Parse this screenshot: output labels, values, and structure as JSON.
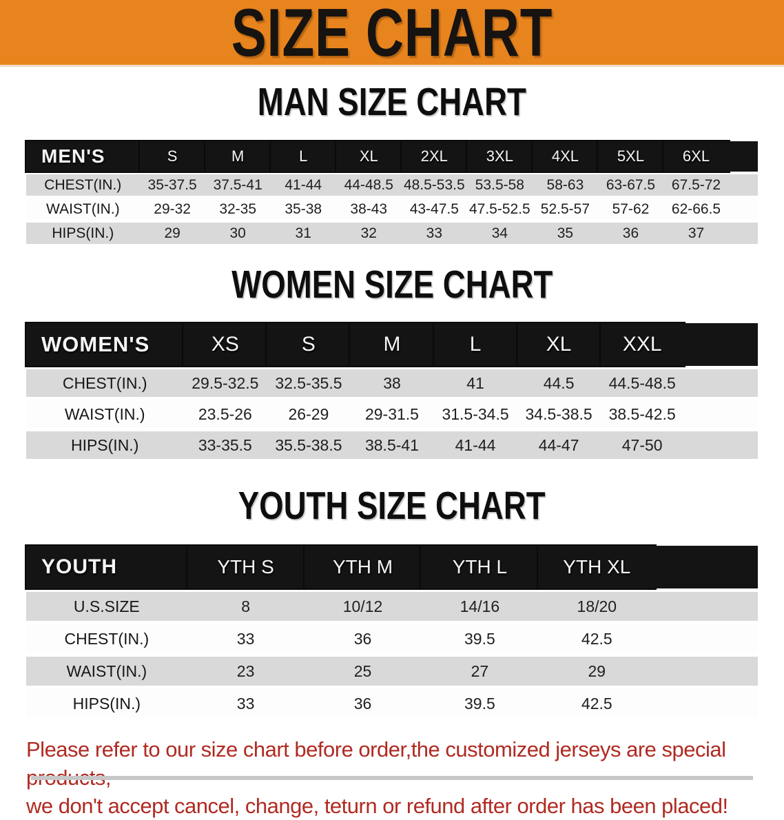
{
  "banner": {
    "title": "SIZE CHART",
    "bg_color": "#E8841E",
    "text_color": "#171310"
  },
  "colors": {
    "table_header_bg": "#141414",
    "table_header_text": "#F5F5F5",
    "row_shaded_bg": "#D9D9D9",
    "note_text": "#B02A22"
  },
  "sections": {
    "men": {
      "heading": "MAN SIZE CHART",
      "corner": "MEN'S",
      "sizes": [
        "S",
        "M",
        "L",
        "XL",
        "2XL",
        "3XL",
        "4XL",
        "5XL",
        "6XL"
      ],
      "rows": [
        {
          "label": "CHEST(IN.)",
          "values": [
            "35-37.5",
            "37.5-41",
            "41-44",
            "44-48.5",
            "48.5-53.5",
            "53.5-58",
            "58-63",
            "63-67.5",
            "67.5-72"
          ]
        },
        {
          "label": "WAIST(IN.)",
          "values": [
            "29-32",
            "32-35",
            "35-38",
            "38-43",
            "43-47.5",
            "47.5-52.5",
            "52.5-57",
            "57-62",
            "62-66.5"
          ]
        },
        {
          "label": "HIPS(IN.)",
          "values": [
            "29",
            "30",
            "31",
            "32",
            "33",
            "34",
            "35",
            "36",
            "37"
          ]
        }
      ]
    },
    "women": {
      "heading": "WOMEN SIZE CHART",
      "corner": "WOMEN'S",
      "sizes": [
        "XS",
        "S",
        "M",
        "L",
        "XL",
        "XXL"
      ],
      "rows": [
        {
          "label": "CHEST(IN.)",
          "values": [
            "29.5-32.5",
            "32.5-35.5",
            "38",
            "41",
            "44.5",
            "44.5-48.5"
          ]
        },
        {
          "label": "WAIST(IN.)",
          "values": [
            "23.5-26",
            "26-29",
            "29-31.5",
            "31.5-34.5",
            "34.5-38.5",
            "38.5-42.5"
          ]
        },
        {
          "label": "HIPS(IN.)",
          "values": [
            "33-35.5",
            "35.5-38.5",
            "38.5-41",
            "41-44",
            "44-47",
            "47-50"
          ]
        }
      ]
    },
    "youth": {
      "heading": "YOUTH SIZE CHART",
      "corner": "YOUTH",
      "sizes": [
        "YTH S",
        "YTH M",
        "YTH L",
        "YTH XL"
      ],
      "rows": [
        {
          "label": "U.S.SIZE",
          "values": [
            "8",
            "10/12",
            "14/16",
            "18/20"
          ]
        },
        {
          "label": "CHEST(IN.)",
          "values": [
            "33",
            "36",
            "39.5",
            "42.5"
          ]
        },
        {
          "label": "WAIST(IN.)",
          "values": [
            "23",
            "25",
            "27",
            "29"
          ]
        },
        {
          "label": "HIPS(IN.)",
          "values": [
            "33",
            "36",
            "39.5",
            "42.5"
          ]
        }
      ]
    }
  },
  "footer": {
    "line1": "Please refer to our size chart before order,the customized jerseys are special products,",
    "line2": "we don't accept cancel, change, teturn or refund after order has been placed!"
  }
}
